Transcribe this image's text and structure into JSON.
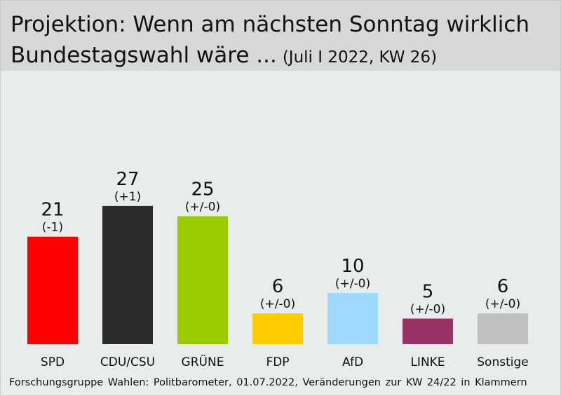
{
  "header": {
    "title_line1": "Projektion: Wenn am nächsten Sonntag wirklich",
    "title_line2": "Bundestagswahl wäre ...",
    "subtitle": "(Juli I 2022, KW 26)"
  },
  "footer": {
    "source": "Forschungsgruppe Wahlen: Politbarometer, 01.07.2022, Veränderungen zur KW 24/22 in Klammern"
  },
  "chart_data": {
    "type": "bar",
    "title": "Projektion: Wenn am nächsten Sonntag wirklich Bundestagswahl wäre ...",
    "subtitle": "(Juli I 2022, KW 26)",
    "categories": [
      "SPD",
      "CDU/CSU",
      "GRÜNE",
      "FDP",
      "AfD",
      "LINKE",
      "Sonstige"
    ],
    "values": [
      21,
      27,
      25,
      6,
      10,
      5,
      6
    ],
    "changes": [
      "(-1)",
      "(+1)",
      "(+/-0)",
      "(+/-0)",
      "(+/-0)",
      "(+/-0)",
      "(+/-0)"
    ],
    "colors": [
      "#ff0000",
      "#2b2b2b",
      "#99cc00",
      "#ffcc00",
      "#9fd8ff",
      "#993366",
      "#c0c0c0"
    ],
    "xlabel": "",
    "ylabel": "",
    "ylim": [
      0,
      30
    ],
    "grid": false,
    "legend": "none"
  }
}
